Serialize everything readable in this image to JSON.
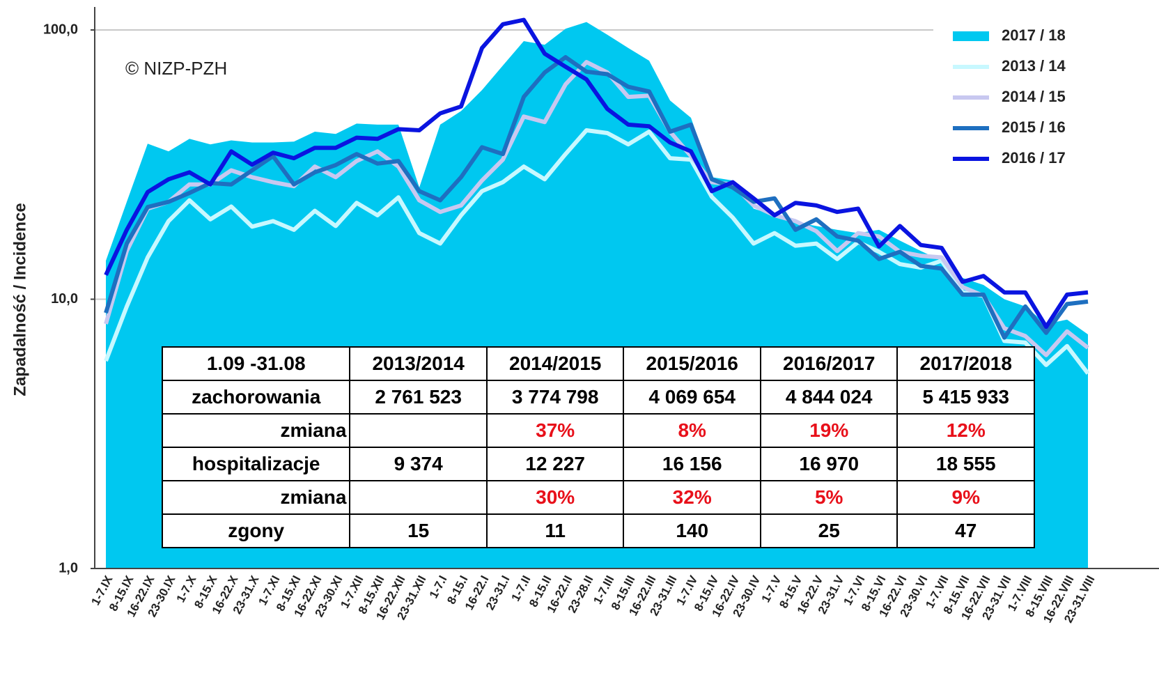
{
  "chart_data": {
    "type": "line",
    "annotation": "© NIZP-PZH",
    "y_label": "Zapadalność  /  Incidence",
    "log_scale": true,
    "grid": true,
    "ylim": [
      1,
      120
    ],
    "yticks": [
      {
        "value": 1,
        "label": "1,0"
      },
      {
        "value": 10,
        "label": "10,0"
      },
      {
        "value": 100,
        "label": "100,0"
      }
    ],
    "categories": [
      "1-7.IX",
      "8-15.IX",
      "16-22.IX",
      "23-30.IX",
      "1-7.X",
      "8-15.X",
      "16-22.X",
      "23-31.X",
      "1-7.XI",
      "8-15.XI",
      "16-22.XI",
      "23-30.XI",
      "1-7.XII",
      "8-15.XII",
      "16-22.XII",
      "23-31.XII",
      "1-7.I",
      "8-15.I",
      "16-22.I",
      "23-31.I",
      "1-7.II",
      "8-15.II",
      "16-22.II",
      "23-28.II",
      "1-7.III",
      "8-15.III",
      "16-22.III",
      "23-31.III",
      "1-7.IV",
      "8-15.IV",
      "16-22.IV",
      "23-30.IV",
      "1-7.V",
      "8-15.V",
      "16-22.V",
      "23-31.V",
      "1-7.VI",
      "8-15.VI",
      "16-22.VI",
      "23-30.VI",
      "1-7.VII",
      "8-15.VII",
      "16-22.VII",
      "23-31.VII",
      "1-7.VIII",
      "8-15.VIII",
      "16-22.VIII",
      "23-31.VIII"
    ],
    "series": [
      {
        "name": "2017 / 18",
        "color": "#00c8f0",
        "fill": true,
        "values": [
          13.9,
          23,
          37.8,
          35.4,
          39.4,
          37.6,
          38.9,
          38.2,
          38.2,
          38.5,
          41.9,
          41.1,
          44.9,
          44.5,
          44.5,
          26,
          44.5,
          50,
          59.8,
          73.8,
          90.9,
          88.1,
          101,
          107,
          96,
          85.7,
          76.9,
          54.7,
          47.2,
          28.4,
          27.6,
          21.7,
          20.5,
          19.3,
          18.7,
          18.1,
          17.6,
          18.1,
          16.5,
          15.1,
          13.9,
          12,
          11.3,
          10,
          9.4,
          8.1,
          8.4,
          7.4
        ]
      },
      {
        "name": "2013 / 14",
        "color": "#c8f8ff",
        "values": [
          5.9,
          9.4,
          14.3,
          19.5,
          23.3,
          19.8,
          22.1,
          18.6,
          19.5,
          18.1,
          21.3,
          18.7,
          22.8,
          20.5,
          23.9,
          17.6,
          16.1,
          20.5,
          25.2,
          27.2,
          31.1,
          27.9,
          34.6,
          42.4,
          41.4,
          37.6,
          41.9,
          33.4,
          33,
          24,
          20.1,
          16.1,
          17.6,
          15.8,
          16.1,
          14.1,
          16.3,
          15,
          13.5,
          13.1,
          13.9,
          10.6,
          10.3,
          7,
          6.9,
          5.7,
          6.7,
          5.3
        ]
      },
      {
        "name": "2014 / 15",
        "color": "#c8c8f0",
        "values": [
          8.1,
          15.1,
          21.7,
          23,
          26.7,
          26.7,
          30.1,
          28.4,
          27.2,
          26.3,
          31.1,
          28.4,
          32.6,
          35.4,
          31.1,
          23.3,
          21.1,
          22.3,
          27.6,
          33,
          47.7,
          45.5,
          62.8,
          76,
          69.5,
          56.4,
          57,
          41.9,
          34,
          27.2,
          26.7,
          22.3,
          20.5,
          19.5,
          17.9,
          15.1,
          17.6,
          17.1,
          15,
          14.5,
          14.3,
          11.1,
          10.3,
          7.8,
          7.3,
          6.2,
          7.6,
          6.6
        ]
      },
      {
        "name": "2015 / 16",
        "color": "#1e6fc0",
        "values": [
          8.9,
          16.1,
          22,
          23,
          24.8,
          27,
          26.7,
          30.1,
          34,
          26.7,
          29.6,
          31.5,
          34.6,
          31.9,
          32.6,
          25.2,
          23.3,
          28.4,
          36.7,
          34.6,
          56.4,
          69.5,
          79.2,
          70,
          68.5,
          61.5,
          59.1,
          41.9,
          44.5,
          27.9,
          26,
          23,
          23.7,
          18.1,
          19.8,
          17.1,
          16.5,
          14.1,
          15,
          13.3,
          13,
          10.4,
          10.4,
          7.2,
          9.4,
          7.5,
          9.6,
          9.8
        ]
      },
      {
        "name": "2016 / 17",
        "color": "#0a14e0",
        "values": [
          12.3,
          18.1,
          25,
          27.9,
          29.6,
          26.7,
          35.4,
          31.6,
          35,
          33.4,
          36.5,
          36.5,
          39.8,
          39.4,
          42.8,
          42.4,
          49,
          52,
          85.7,
          105,
          109,
          81.6,
          73,
          65.5,
          50.9,
          44.5,
          43.9,
          38.2,
          35.4,
          25.2,
          27.2,
          23.7,
          20.5,
          22.8,
          22.3,
          21.1,
          21.7,
          15.7,
          18.7,
          15.9,
          15.5,
          11.6,
          12.2,
          10.6,
          10.6,
          7.9,
          10.4,
          10.6
        ]
      }
    ]
  },
  "table": {
    "header": [
      "1.09 -31.08",
      "2013/2014",
      "2014/2015",
      "2015/2016",
      "2016/2017",
      "2017/2018"
    ],
    "rows": [
      {
        "cells": [
          "zachorowania",
          "2 761 523",
          "3 774 798",
          "4 069 654",
          "4 844 024",
          "5 415 933"
        ]
      },
      {
        "cells": [
          "zmiana",
          null,
          "37%",
          "8%",
          "19%",
          "12%"
        ],
        "value_color": "#e8101a"
      },
      {
        "cells": [
          "hospitalizacje",
          "9 374",
          "12 227",
          "16 156",
          "16 970",
          "18 555"
        ]
      },
      {
        "cells": [
          "zmiana",
          null,
          "30%",
          "32%",
          "5%",
          "9%"
        ],
        "value_color": "#e8101a"
      },
      {
        "cells": [
          "zgony",
          "15",
          "11",
          "140",
          "25",
          "47"
        ]
      }
    ]
  }
}
